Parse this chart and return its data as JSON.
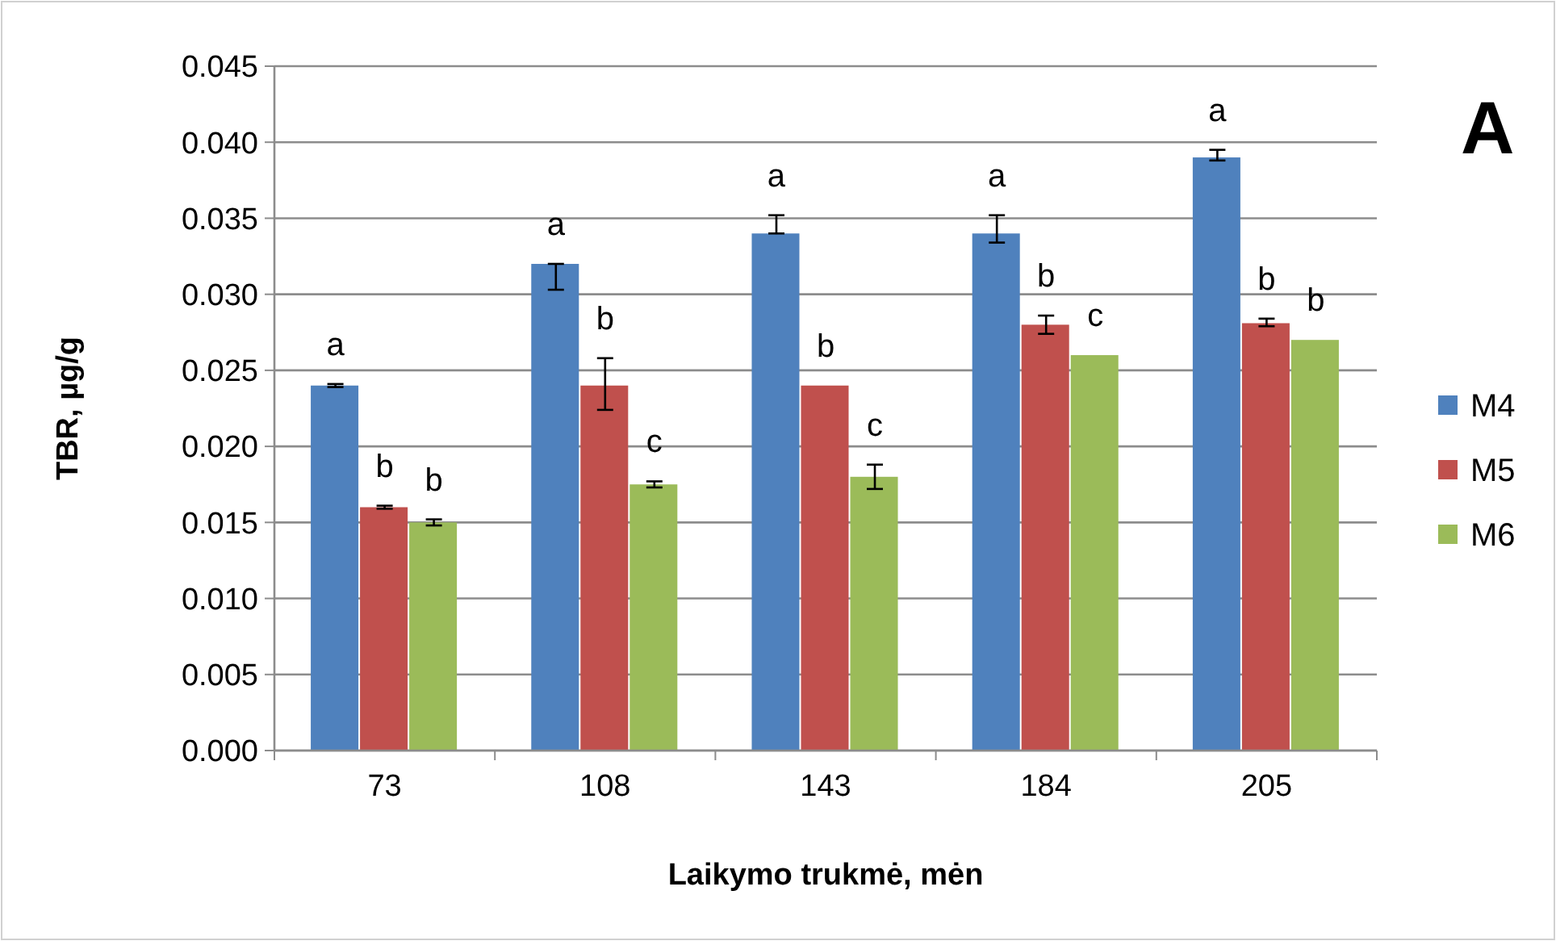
{
  "chart_data": {
    "type": "bar",
    "xlabel": "Laikymo trukmė, mėn",
    "ylabel": "TBR, µg/g",
    "categories": [
      "73",
      "108",
      "143",
      "184",
      "205"
    ],
    "series": [
      {
        "name": "M4",
        "color": "#4f81bd",
        "values": [
          0.024,
          0.032,
          0.034,
          0.034,
          0.039
        ],
        "errors": [
          0.0001,
          [
            0.0303,
            0.032
          ],
          [
            0.034,
            0.0352
          ],
          [
            0.0334,
            0.0352
          ],
          [
            0.0388,
            0.0395
          ]
        ]
      },
      {
        "name": "M5",
        "color": "#c0504d",
        "values": [
          0.016,
          0.024,
          0.024,
          0.028,
          0.0281
        ],
        "errors": [
          0.0001,
          [
            0.0224,
            0.0258
          ],
          null,
          [
            0.0274,
            0.0286
          ],
          [
            0.0279,
            0.0284
          ]
        ]
      },
      {
        "name": "M6",
        "color": "#9bbb59",
        "values": [
          0.015,
          0.0175,
          0.018,
          0.026,
          0.027
        ],
        "errors": [
          0.0002,
          0.0002,
          [
            0.0172,
            0.0188
          ],
          null,
          null
        ]
      }
    ],
    "ylim": [
      0,
      0.045
    ],
    "yticks": [
      {
        "value": 0,
        "label": "0.000"
      },
      {
        "value": 0.005,
        "label": "0.005"
      },
      {
        "value": 0.01,
        "label": "0.010"
      },
      {
        "value": 0.015,
        "label": "0.015"
      },
      {
        "value": 0.02,
        "label": "0.020"
      },
      {
        "value": 0.025,
        "label": "0.025"
      },
      {
        "value": 0.03,
        "label": "0.030"
      },
      {
        "value": 0.035,
        "label": "0.035"
      },
      {
        "value": 0.04,
        "label": "0.040"
      },
      {
        "value": 0.045,
        "label": "0.045"
      }
    ],
    "grid": "y",
    "legend": "right",
    "annotations": [
      "A",
      "a",
      "b",
      "b",
      "a",
      "b",
      "c",
      "a",
      "b",
      "c",
      "a",
      "b",
      "c",
      "a",
      "b",
      "b"
    ]
  }
}
